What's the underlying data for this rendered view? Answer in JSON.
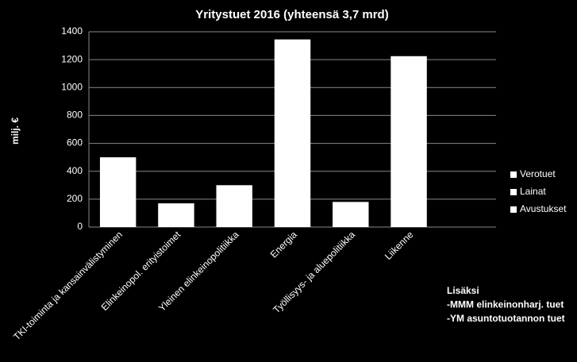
{
  "chart_data": {
    "type": "bar",
    "title": "Yritystuet 2016 (yhteensä 3,7 mrd)",
    "y_label": "milj. €",
    "categories": [
      "TKI-toiminta ja kansainvälistyminen",
      "Elinkeinopol. erityistoimet",
      "Yleinen elinkeinopolitiikka",
      "Energia",
      "Työllisyys- ja aluepolitiikka",
      "Liikenne",
      null
    ],
    "values": [
      500,
      170,
      300,
      1345,
      180,
      1225,
      null
    ],
    "color": "#ffffff",
    "legend": [
      "Verotuet",
      "Lainat",
      "Avustukset"
    ],
    "legend_position": "right",
    "ylim": [
      0,
      1400
    ],
    "yticks": [
      0,
      200,
      400,
      600,
      800,
      1000,
      1200,
      1400
    ],
    "grid": true,
    "annotations": [
      "Lisäksi",
      "-MMM elinkeinonharj. tuet",
      "-YM asuntotuotannon tuet"
    ]
  }
}
